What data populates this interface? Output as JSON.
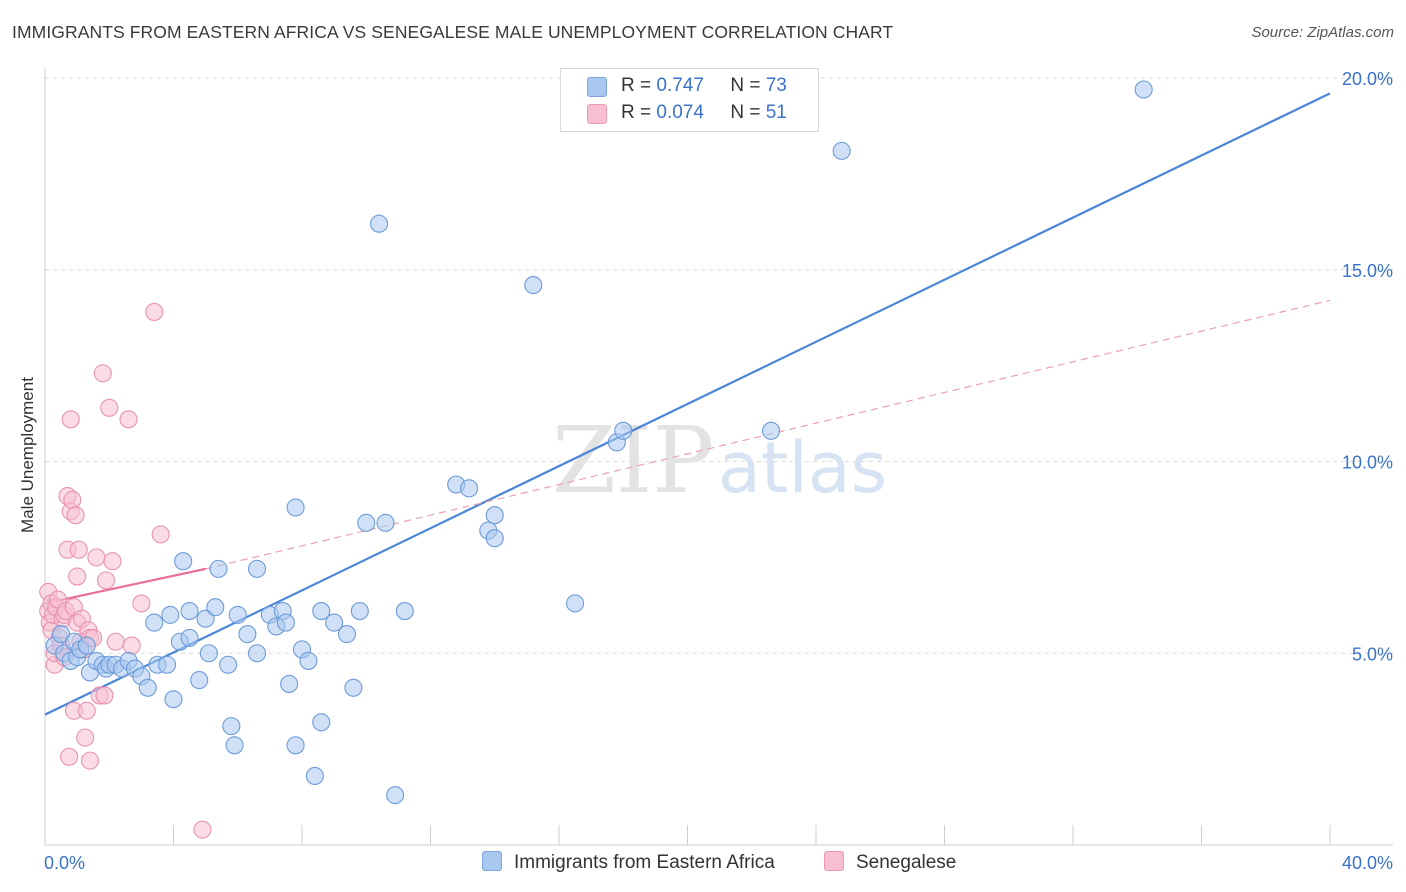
{
  "title": "IMMIGRANTS FROM EASTERN AFRICA VS SENEGALESE MALE UNEMPLOYMENT CORRELATION CHART",
  "source": "Source: ZipAtlas.com",
  "watermark": {
    "zip": "ZIP",
    "atlas": "atlas"
  },
  "legend": {
    "rows": [
      {
        "r_label": "R =",
        "r_value": "0.747",
        "n_label": "N =",
        "n_value": "73",
        "color": "#a9c8f0",
        "border": "#7ea6dc"
      },
      {
        "r_label": "R =",
        "r_value": "0.074",
        "n_label": "N =",
        "n_value": "51",
        "color": "#f7bfd0",
        "border": "#e89ab2"
      }
    ]
  },
  "bottom_legend": {
    "series1": "Immigrants from Eastern Africa",
    "series2": "Senegalese"
  },
  "chart_data": {
    "type": "scatter",
    "ylabel": "Male Unemployment",
    "xlabel": "",
    "x_tick_labels": [
      "0.0%",
      "40.0%"
    ],
    "y_tick_labels": [
      "5.0%",
      "10.0%",
      "15.0%",
      "20.0%"
    ],
    "y_ticks": [
      5,
      10,
      15,
      20
    ],
    "xlim": [
      0,
      40
    ],
    "ylim": [
      0,
      21
    ],
    "colors": {
      "blue": "#4a86d8",
      "blue_fill": "#a9c8f0",
      "pink": "#e8709a",
      "pink_fill": "#f7bfd0",
      "value_text": "#3b73c8"
    },
    "series": [
      {
        "name": "Immigrants from Eastern Africa",
        "points": [
          [
            0.3,
            5.2
          ],
          [
            0.5,
            5.5
          ],
          [
            0.6,
            5.0
          ],
          [
            0.8,
            4.8
          ],
          [
            0.9,
            5.3
          ],
          [
            1.0,
            4.9
          ],
          [
            1.1,
            5.1
          ],
          [
            1.3,
            5.2
          ],
          [
            1.4,
            4.5
          ],
          [
            1.6,
            4.8
          ],
          [
            1.8,
            4.7
          ],
          [
            1.9,
            4.6
          ],
          [
            2.0,
            4.7
          ],
          [
            2.2,
            4.7
          ],
          [
            2.4,
            4.6
          ],
          [
            2.6,
            4.8
          ],
          [
            2.8,
            4.6
          ],
          [
            3.0,
            4.4
          ],
          [
            3.2,
            4.1
          ],
          [
            3.4,
            5.8
          ],
          [
            3.5,
            4.7
          ],
          [
            3.8,
            4.7
          ],
          [
            3.9,
            6.0
          ],
          [
            4.0,
            3.8
          ],
          [
            4.2,
            5.3
          ],
          [
            4.3,
            7.4
          ],
          [
            4.5,
            6.1
          ],
          [
            4.5,
            5.4
          ],
          [
            4.8,
            4.3
          ],
          [
            5.0,
            5.9
          ],
          [
            5.1,
            5.0
          ],
          [
            5.3,
            6.2
          ],
          [
            5.4,
            7.2
          ],
          [
            5.7,
            4.7
          ],
          [
            5.8,
            3.1
          ],
          [
            5.9,
            2.6
          ],
          [
            6.0,
            6.0
          ],
          [
            6.3,
            5.5
          ],
          [
            6.6,
            5.0
          ],
          [
            6.6,
            7.2
          ],
          [
            7.0,
            6.0
          ],
          [
            7.2,
            5.7
          ],
          [
            7.4,
            6.1
          ],
          [
            7.5,
            5.8
          ],
          [
            7.6,
            4.2
          ],
          [
            7.8,
            8.8
          ],
          [
            7.8,
            2.6
          ],
          [
            8.0,
            5.1
          ],
          [
            8.2,
            4.8
          ],
          [
            8.4,
            1.8
          ],
          [
            8.6,
            6.1
          ],
          [
            8.6,
            3.2
          ],
          [
            9.0,
            5.8
          ],
          [
            9.4,
            5.5
          ],
          [
            9.6,
            4.1
          ],
          [
            9.8,
            6.1
          ],
          [
            10.0,
            8.4
          ],
          [
            10.4,
            16.2
          ],
          [
            10.6,
            8.4
          ],
          [
            10.9,
            1.3
          ],
          [
            11.2,
            6.1
          ],
          [
            12.8,
            9.4
          ],
          [
            13.2,
            9.3
          ],
          [
            13.8,
            8.2
          ],
          [
            14.0,
            8.6
          ],
          [
            14.0,
            8.0
          ],
          [
            15.2,
            14.6
          ],
          [
            16.5,
            6.3
          ],
          [
            17.8,
            10.5
          ],
          [
            18.0,
            10.8
          ],
          [
            22.6,
            10.8
          ],
          [
            24.8,
            18.1
          ],
          [
            34.2,
            19.7
          ]
        ],
        "trend": {
          "x1": 0.0,
          "y1": 3.4,
          "x2": 40.0,
          "y2": 19.6
        }
      },
      {
        "name": "Senegalese",
        "points": [
          [
            0.1,
            6.6
          ],
          [
            0.1,
            6.1
          ],
          [
            0.15,
            5.8
          ],
          [
            0.2,
            6.3
          ],
          [
            0.2,
            5.6
          ],
          [
            0.25,
            6.0
          ],
          [
            0.3,
            4.7
          ],
          [
            0.3,
            5.0
          ],
          [
            0.35,
            6.2
          ],
          [
            0.4,
            6.4
          ],
          [
            0.45,
            5.4
          ],
          [
            0.5,
            5.2
          ],
          [
            0.55,
            5.9
          ],
          [
            0.6,
            6.0
          ],
          [
            0.6,
            4.9
          ],
          [
            0.65,
            6.1
          ],
          [
            0.7,
            9.1
          ],
          [
            0.7,
            7.7
          ],
          [
            0.75,
            2.3
          ],
          [
            0.8,
            8.7
          ],
          [
            0.8,
            11.1
          ],
          [
            0.85,
            9.0
          ],
          [
            0.9,
            3.5
          ],
          [
            0.9,
            6.2
          ],
          [
            0.95,
            8.6
          ],
          [
            1.0,
            5.8
          ],
          [
            1.0,
            7.0
          ],
          [
            1.05,
            7.7
          ],
          [
            1.1,
            5.3
          ],
          [
            1.15,
            5.9
          ],
          [
            1.2,
            5.1
          ],
          [
            1.25,
            2.8
          ],
          [
            1.3,
            3.5
          ],
          [
            1.35,
            5.6
          ],
          [
            1.4,
            5.4
          ],
          [
            1.4,
            2.2
          ],
          [
            1.5,
            5.4
          ],
          [
            1.6,
            7.5
          ],
          [
            1.7,
            3.9
          ],
          [
            1.8,
            12.3
          ],
          [
            1.85,
            3.9
          ],
          [
            1.9,
            6.9
          ],
          [
            2.0,
            11.4
          ],
          [
            2.1,
            7.4
          ],
          [
            2.2,
            5.3
          ],
          [
            2.6,
            11.1
          ],
          [
            2.7,
            5.2
          ],
          [
            3.0,
            6.3
          ],
          [
            3.4,
            13.9
          ],
          [
            3.6,
            8.1
          ],
          [
            4.9,
            0.4
          ]
        ],
        "trend_solid": {
          "x1": 0.0,
          "y1": 6.3,
          "x2": 5.0,
          "y2": 7.2
        },
        "trend_dashed": {
          "x1": 5.0,
          "y1": 7.2,
          "x2": 40.0,
          "y2": 14.2
        }
      }
    ]
  }
}
